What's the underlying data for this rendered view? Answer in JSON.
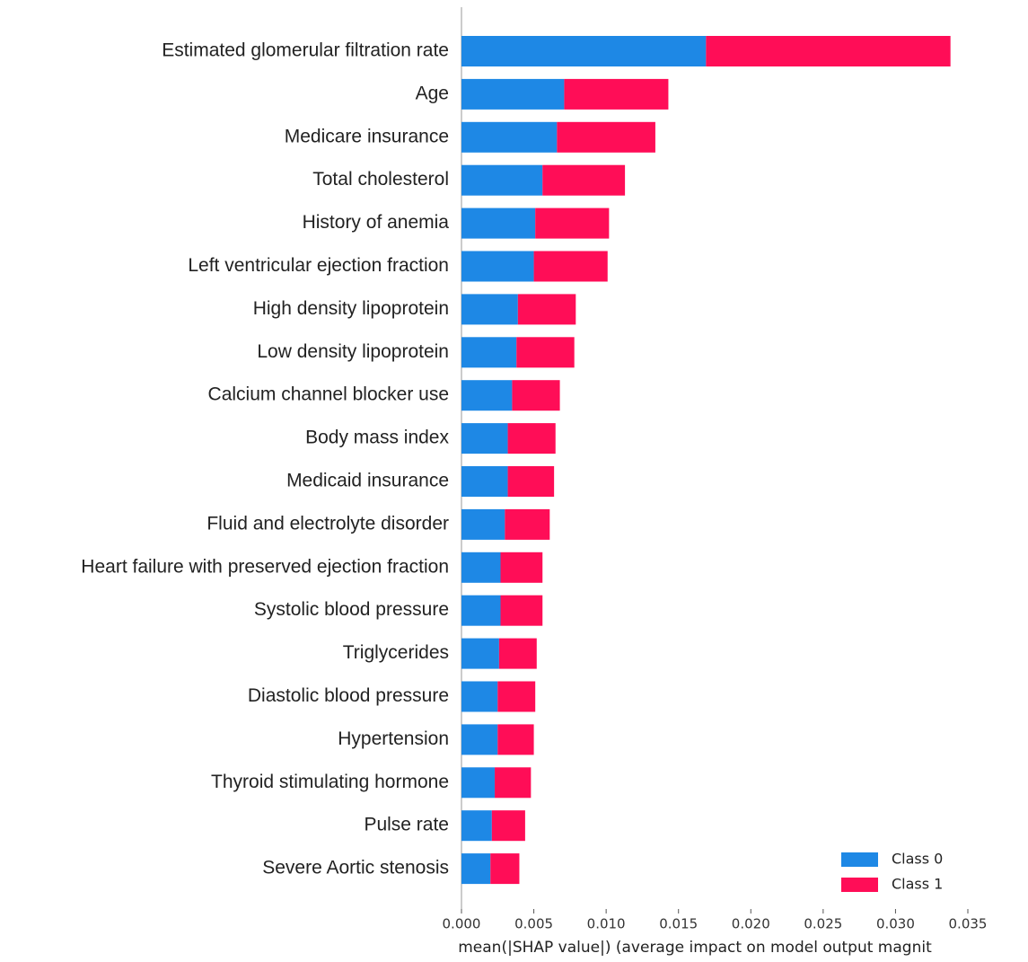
{
  "chart_data": {
    "type": "stacked_barh",
    "categories": [
      "Estimated glomerular filtration rate",
      "Age",
      "Medicare insurance",
      "Total cholesterol",
      "History of anemia",
      "Left ventricular ejection fraction",
      "High density lipoprotein",
      "Low density lipoprotein",
      "Calcium channel blocker use",
      "Body mass index",
      "Medicaid insurance",
      "Fluid and electrolyte disorder",
      "Heart failure with preserved ejection fraction",
      "Systolic blood  pressure",
      "Triglycerides",
      "Diastolic blood pressure",
      "Hypertension",
      "Thyroid stimulating hormone",
      "Pulse rate",
      "Severe Aortic stenosis"
    ],
    "series": [
      {
        "name": "Class 0",
        "color": "#1e88e5",
        "values": [
          0.0169,
          0.0071,
          0.0066,
          0.0056,
          0.0051,
          0.005,
          0.0039,
          0.0038,
          0.0035,
          0.0032,
          0.0032,
          0.003,
          0.0027,
          0.0027,
          0.0026,
          0.0025,
          0.0025,
          0.0023,
          0.0021,
          0.002
        ]
      },
      {
        "name": "Class 1",
        "color": "#ff0d57",
        "values": [
          0.0169,
          0.0072,
          0.0068,
          0.0057,
          0.0051,
          0.0051,
          0.004,
          0.004,
          0.0033,
          0.0033,
          0.0032,
          0.0031,
          0.0029,
          0.0029,
          0.0026,
          0.0026,
          0.0025,
          0.0025,
          0.0023,
          0.002
        ]
      }
    ],
    "xlim": [
      0,
      0.035
    ],
    "xticks": [
      {
        "value": 0,
        "label": "0.000"
      },
      {
        "value": 0.005,
        "label": "0.005"
      },
      {
        "value": 0.01,
        "label": "0.010"
      },
      {
        "value": 0.015,
        "label": "0.015"
      },
      {
        "value": 0.02,
        "label": "0.020"
      },
      {
        "value": 0.025,
        "label": "0.025"
      },
      {
        "value": 0.03,
        "label": "0.030"
      },
      {
        "value": 0.035,
        "label": "0.035"
      }
    ],
    "xlabel": "mean(|SHAP value|) (average impact on model output magnit",
    "legend": "lower right"
  }
}
